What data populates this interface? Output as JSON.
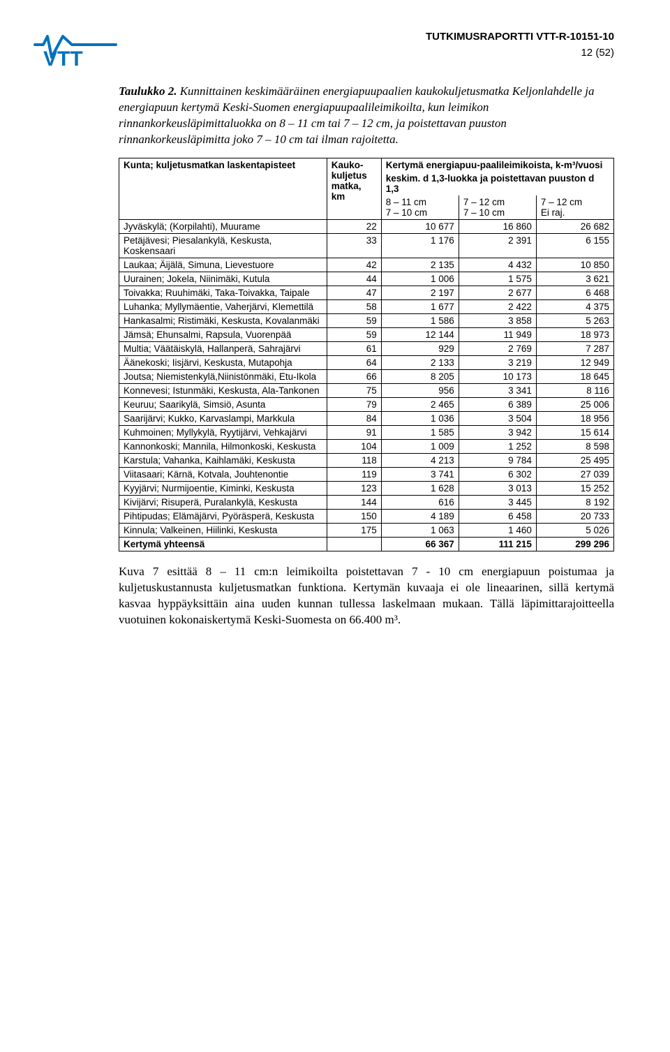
{
  "header": {
    "doc_id": "TUTKIMUSRAPORTTI VTT-R-10151-10",
    "page_num": "12 (52)",
    "logo_text": "VTT",
    "logo_color": "#0072bc"
  },
  "caption": {
    "lead": "Taulukko 2.",
    "text": " Kunnittainen keskimääräinen energiapuupaalien kaukokuljetusmatka Keljonlahdelle ja energiapuun kertymä Keski-Suomen energiapuupaalileimikoilta, kun leimikon rinnankorkeusläpimittaluokka on 8 – 11 cm tai 7 – 12 cm, ja poistettavan puuston rinnankorkeusläpimitta joko 7 – 10 cm tai ilman rajoitetta."
  },
  "table": {
    "head": {
      "col1": "Kunta; kuljetusmatkan laskentapisteet",
      "col2": "Kauko-kuljetus matka, km",
      "col3_top": "Kertymä energiapuu-paalileimikoista, k-m³/vuosi",
      "col3_mid": "keskim. d 1,3-luokka ja poistettavan puuston d 1,3",
      "sub1a": "8 – 11 cm",
      "sub1b": "7 – 10 cm",
      "sub2a": "7 – 12 cm",
      "sub2b": "7 – 10 cm",
      "sub3a": "7 – 12 cm",
      "sub3b": "Ei raj."
    },
    "rows": [
      {
        "name": "Jyväskylä; (Korpilahti), Muurame",
        "km": "22",
        "v1": "10 677",
        "v2": "16 860",
        "v3": "26 682"
      },
      {
        "name": "Petäjävesi; Piesalankylä, Keskusta, Koskensaari",
        "km": "33",
        "v1": "1 176",
        "v2": "2 391",
        "v3": "6 155"
      },
      {
        "name": "Laukaa; Äijälä, Simuna, Lievestuore",
        "km": "42",
        "v1": "2 135",
        "v2": "4 432",
        "v3": "10 850"
      },
      {
        "name": "Uurainen; Jokela, Niinimäki, Kutula",
        "km": "44",
        "v1": "1 006",
        "v2": "1 575",
        "v3": "3 621"
      },
      {
        "name": "Toivakka; Ruuhimäki, Taka-Toivakka, Taipale",
        "km": "47",
        "v1": "2 197",
        "v2": "2 677",
        "v3": "6 468"
      },
      {
        "name": "Luhanka; Myllymäentie, Vaherjärvi, Klemettilä",
        "km": "58",
        "v1": "1 677",
        "v2": "2 422",
        "v3": "4 375"
      },
      {
        "name": "Hankasalmi; Ristimäki, Keskusta, Kovalanmäki",
        "km": "59",
        "v1": "1 586",
        "v2": "3 858",
        "v3": "5 263"
      },
      {
        "name": "Jämsä; Ehunsalmi, Rapsula, Vuorenpää",
        "km": "59",
        "v1": "12 144",
        "v2": "11 949",
        "v3": "18 973"
      },
      {
        "name": "Multia; Väätäiskylä, Hallanperä, Sahrajärvi",
        "km": "61",
        "v1": "929",
        "v2": "2 769",
        "v3": "7 287"
      },
      {
        "name": "Äänekoski; Iisjärvi, Keskusta, Mutapohja",
        "km": "64",
        "v1": "2 133",
        "v2": "3 219",
        "v3": "12 949"
      },
      {
        "name": "Joutsa; Niemistenkylä,Niinistönmäki, Etu-Ikola",
        "km": "66",
        "v1": "8 205",
        "v2": "10 173",
        "v3": "18 645"
      },
      {
        "name": "Konnevesi; Istunmäki, Keskusta, Ala-Tankonen",
        "km": "75",
        "v1": "956",
        "v2": "3 341",
        "v3": "8 116"
      },
      {
        "name": "Keuruu; Saarikylä, Simsiö, Asunta",
        "km": "79",
        "v1": "2 465",
        "v2": "6 389",
        "v3": "25 006"
      },
      {
        "name": "Saarijärvi; Kukko, Karvaslampi, Markkula",
        "km": "84",
        "v1": "1 036",
        "v2": "3 504",
        "v3": "18 956"
      },
      {
        "name": "Kuhmoinen; Myllykylä, Ryytijärvi, Vehkajärvi",
        "km": "91",
        "v1": "1 585",
        "v2": "3 942",
        "v3": "15 614"
      },
      {
        "name": "Kannonkoski; Mannila, Hilmonkoski, Keskusta",
        "km": "104",
        "v1": "1 009",
        "v2": "1 252",
        "v3": "8 598"
      },
      {
        "name": "Karstula; Vahanka, Kaihlamäki, Keskusta",
        "km": "118",
        "v1": "4 213",
        "v2": "9 784",
        "v3": "25 495"
      },
      {
        "name": "Viitasaari; Kärnä, Kotvala, Jouhtenontie",
        "km": "119",
        "v1": "3 741",
        "v2": "6 302",
        "v3": "27 039"
      },
      {
        "name": "Kyyjärvi; Nurmijoentie, Kiminki, Keskusta",
        "km": "123",
        "v1": "1 628",
        "v2": "3 013",
        "v3": "15 252"
      },
      {
        "name": "Kivijärvi; Risuperä, Puralankylä, Keskusta",
        "km": "144",
        "v1": "616",
        "v2": "3 445",
        "v3": "8 192"
      },
      {
        "name": "Pihtipudas; Elämäjärvi, Pyöräsperä, Keskusta",
        "km": "150",
        "v1": "4 189",
        "v2": "6 458",
        "v3": "20 733"
      },
      {
        "name": "Kinnula; Valkeinen, Hiilinki, Keskusta",
        "km": "175",
        "v1": "1 063",
        "v2": "1 460",
        "v3": "5 026"
      }
    ],
    "total": {
      "label": "Kertymä yhteensä",
      "km": "",
      "v1": "66 367",
      "v2": "111 215",
      "v3": "299 296"
    }
  },
  "body": "Kuva 7 esittää 8 – 11 cm:n leimikoilta poistettavan 7 - 10 cm energiapuun poistumaa ja kuljetuskustannusta kuljetusmatkan funktiona. Kertymän kuvaaja ei ole lineaarinen, sillä kertymä kasvaa hyppäyksittäin aina uuden kunnan tullessa laskelmaan mukaan. Tällä läpimittarajoitteella vuotuinen kokonaiskertymä Keski-Suomesta on 66.400 m³."
}
